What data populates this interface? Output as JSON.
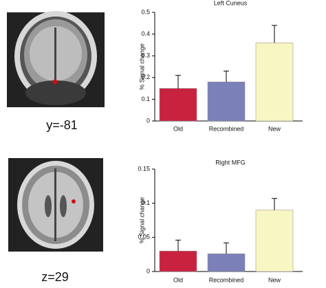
{
  "slices": [
    "y=-81",
    "z=29"
  ],
  "chart_data": [
    {
      "type": "bar",
      "title": "Left Cuneus",
      "y_label": "% Signal change",
      "categories": [
        "Old",
        "Recombined",
        "New"
      ],
      "values": [
        0.15,
        0.18,
        0.36
      ],
      "errors": [
        0.06,
        0.05,
        0.08
      ],
      "colors": [
        "#c9223f",
        "#7b80b8",
        "#f8f6c2"
      ],
      "ylim": [
        0,
        0.5
      ],
      "yticks": [
        0,
        0.1,
        0.2,
        0.3,
        0.4,
        0.5
      ]
    },
    {
      "type": "bar",
      "title": "Right MFG",
      "y_label": "% Signal change",
      "categories": [
        "Old",
        "Recombined",
        "New"
      ],
      "values": [
        0.03,
        0.026,
        0.09
      ],
      "errors": [
        0.016,
        0.016,
        0.017
      ],
      "colors": [
        "#c9223f",
        "#7b80b8",
        "#f8f6c2"
      ],
      "ylim": [
        0,
        0.15
      ],
      "yticks": [
        0,
        0.05,
        0.1,
        0.15
      ]
    }
  ]
}
